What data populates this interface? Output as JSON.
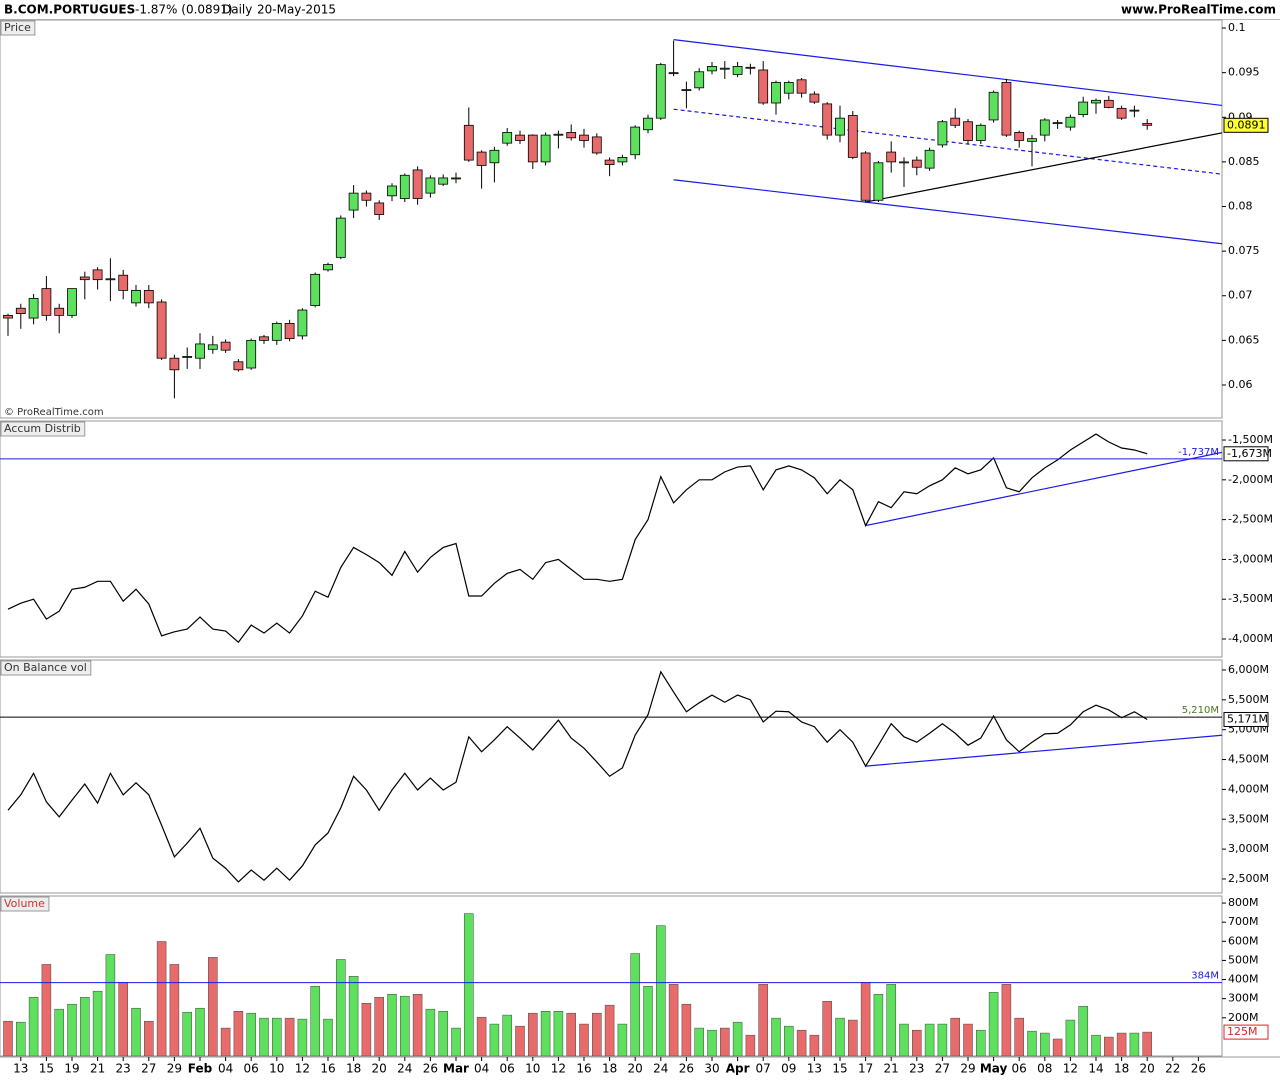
{
  "header": {
    "symbol": "B.COM.PORTUGUES",
    "change": "-1.87% (0.0891)",
    "period": "Daily",
    "date": "20-May-2015",
    "site": "www.ProRealTime.com"
  },
  "chart_data": [
    {
      "type": "candlestick",
      "title": "Price",
      "annotation": "© ProRealTime.com",
      "categories": [
        null,
        "13",
        null,
        "15",
        null,
        "19",
        null,
        "21",
        null,
        "23",
        null,
        "27",
        null,
        "29",
        null,
        "Feb",
        null,
        "04",
        null,
        "06",
        null,
        "10",
        null,
        "12",
        null,
        "16",
        null,
        "18",
        null,
        "20",
        null,
        "24",
        null,
        "26",
        null,
        "Mar",
        null,
        "04",
        null,
        "06",
        null,
        "10",
        null,
        "12",
        null,
        "16",
        null,
        "18",
        null,
        "20",
        null,
        "24",
        null,
        "26",
        null,
        "30",
        null,
        "Apr",
        null,
        "07",
        null,
        "09",
        null,
        "13",
        null,
        "15",
        null,
        "17",
        null,
        "21",
        null,
        "23",
        null,
        "27",
        null,
        "29",
        null,
        "May",
        null,
        "06",
        null,
        "08",
        null,
        "12",
        null,
        "14",
        null,
        "18",
        null,
        "20",
        null,
        "22",
        null,
        "26"
      ],
      "open": [
        0.0678,
        0.0686,
        0.0675,
        0.0708,
        0.0686,
        0.0678,
        0.0721,
        0.0729,
        0.0718,
        0.0723,
        0.0692,
        0.0706,
        0.0693,
        0.063,
        0.0631,
        0.063,
        0.064,
        0.0648,
        0.0626,
        0.0619,
        0.0654,
        0.065,
        0.0669,
        0.0655,
        0.0689,
        0.0729,
        0.0743,
        0.0796,
        0.0815,
        0.0804,
        0.0812,
        0.0809,
        0.0841,
        0.0815,
        0.0825,
        0.0832,
        0.0891,
        0.0861,
        0.0849,
        0.0871,
        0.088,
        0.088,
        0.085,
        0.088,
        0.0883,
        0.088,
        0.0878,
        0.0852,
        0.085,
        0.0858,
        0.0886,
        0.0899,
        0.095,
        0.0931,
        0.0933,
        0.0952,
        0.0955,
        0.0948,
        0.0956,
        0.0953,
        0.0916,
        0.0927,
        0.0942,
        0.0926,
        0.0915,
        0.088,
        0.0902,
        0.086,
        0.0807,
        0.0861,
        0.085,
        0.0852,
        0.0843,
        0.0869,
        0.0899,
        0.0895,
        0.0874,
        0.0897,
        0.0939,
        0.0883,
        0.0873,
        0.088,
        0.0894,
        0.0889,
        0.0903,
        0.0916,
        0.0919,
        0.091,
        0.0908,
        0.0893,
        null,
        null,
        null,
        null
      ],
      "high": [
        0.068,
        0.0691,
        0.0702,
        0.0722,
        0.0691,
        0.0708,
        0.0727,
        0.0732,
        0.0742,
        0.0729,
        0.0712,
        0.0712,
        0.0696,
        0.0634,
        0.0642,
        0.0658,
        0.0655,
        0.0651,
        0.0629,
        0.0652,
        0.0656,
        0.0671,
        0.0673,
        0.0686,
        0.0726,
        0.0737,
        0.079,
        0.0824,
        0.0818,
        0.0807,
        0.0826,
        0.0837,
        0.0845,
        0.0835,
        0.0836,
        0.0838,
        0.0911,
        0.0863,
        0.0867,
        0.0888,
        0.0885,
        0.0881,
        0.0883,
        0.0885,
        0.0892,
        0.0887,
        0.0882,
        0.0855,
        0.0858,
        0.0891,
        0.0903,
        0.0961,
        0.0986,
        0.094,
        0.0955,
        0.0962,
        0.0963,
        0.0962,
        0.096,
        0.0963,
        0.0941,
        0.0941,
        0.0944,
        0.0929,
        0.0917,
        0.0913,
        0.0907,
        0.0862,
        0.0851,
        0.0873,
        0.0855,
        0.0856,
        0.0866,
        0.0897,
        0.091,
        0.0898,
        0.0893,
        0.093,
        0.0943,
        0.0885,
        0.088,
        0.0899,
        0.0897,
        0.0903,
        0.0923,
        0.0921,
        0.0924,
        0.0913,
        0.0913,
        0.0898,
        null,
        null,
        null,
        null
      ],
      "low": [
        0.0655,
        0.0663,
        0.0668,
        0.0672,
        0.0658,
        0.0675,
        0.0696,
        0.0707,
        0.0694,
        0.0696,
        0.0688,
        0.0686,
        0.0628,
        0.0585,
        0.0618,
        0.0618,
        0.0635,
        0.0636,
        0.0615,
        0.0617,
        0.0646,
        0.0645,
        0.0649,
        0.0651,
        0.0687,
        0.0727,
        0.0741,
        0.0787,
        0.08,
        0.0785,
        0.0806,
        0.0805,
        0.0802,
        0.081,
        0.0823,
        0.0826,
        0.085,
        0.082,
        0.0827,
        0.0868,
        0.087,
        0.0842,
        0.0846,
        0.0865,
        0.0874,
        0.0866,
        0.0858,
        0.0834,
        0.0846,
        0.0853,
        0.0882,
        0.0897,
        0.0946,
        0.091,
        0.093,
        0.0948,
        0.0943,
        0.0945,
        0.0948,
        0.0914,
        0.0903,
        0.092,
        0.0922,
        0.0915,
        0.0875,
        0.0872,
        0.0853,
        0.0805,
        0.0805,
        0.0838,
        0.0822,
        0.0835,
        0.084,
        0.0866,
        0.0888,
        0.087,
        0.087,
        0.0894,
        0.0878,
        0.0866,
        0.0845,
        0.0873,
        0.0887,
        0.0885,
        0.09,
        0.0904,
        0.091,
        0.0897,
        0.09,
        0.0886,
        null,
        null,
        null,
        null
      ],
      "close": [
        0.0675,
        0.068,
        0.0697,
        0.0678,
        0.0678,
        0.0708,
        0.0718,
        0.0718,
        0.0719,
        0.0706,
        0.0706,
        0.0692,
        0.063,
        0.0617,
        0.0632,
        0.0646,
        0.0645,
        0.0639,
        0.0617,
        0.065,
        0.065,
        0.0669,
        0.0652,
        0.0684,
        0.0724,
        0.0735,
        0.0787,
        0.0815,
        0.0807,
        0.0791,
        0.0823,
        0.0835,
        0.0809,
        0.0832,
        0.0832,
        0.0832,
        0.0852,
        0.0846,
        0.0863,
        0.0883,
        0.0874,
        0.085,
        0.088,
        0.0881,
        0.0877,
        0.0874,
        0.086,
        0.0847,
        0.0855,
        0.0889,
        0.0899,
        0.0959,
        0.0949,
        0.093,
        0.0951,
        0.0957,
        0.0955,
        0.0957,
        0.0955,
        0.0916,
        0.0939,
        0.0939,
        0.0927,
        0.0917,
        0.088,
        0.0899,
        0.0855,
        0.0807,
        0.0849,
        0.085,
        0.085,
        0.0844,
        0.0863,
        0.0895,
        0.0891,
        0.0874,
        0.0891,
        0.0928,
        0.088,
        0.0874,
        0.0876,
        0.0897,
        0.0894,
        0.09,
        0.0917,
        0.0919,
        0.0911,
        0.0899,
        0.0908,
        0.0891,
        null,
        null,
        null,
        null
      ],
      "up_color": "#5de05d",
      "down_color": "#e86b6b",
      "ylim": [
        0.0563,
        0.1009
      ],
      "yticks": [
        0.1,
        0.095,
        0.09,
        0.085,
        0.08,
        0.075,
        0.07,
        0.065,
        0.06
      ],
      "last_label": "0.0891",
      "last_fill": "#ffff33",
      "last_color": "#000000",
      "lines": [
        {
          "x": [
            52,
            95
          ],
          "y": [
            0.0987,
            0.0913
          ],
          "color": "#1a1ae6",
          "dashed": false
        },
        {
          "x": [
            52,
            95
          ],
          "y": [
            0.0909,
            0.0836
          ],
          "color": "#1a1ae6",
          "dashed": true
        },
        {
          "x": [
            52,
            95
          ],
          "y": [
            0.083,
            0.0758
          ],
          "color": "#1a1ae6",
          "dashed": false
        },
        {
          "x": [
            67,
            95
          ],
          "y": [
            0.0805,
            0.0883
          ],
          "color": "#000000",
          "dashed": false
        }
      ]
    },
    {
      "type": "line",
      "title": "Accum Distrib",
      "color": "#000000",
      "values": [
        -3625,
        -3550,
        -3500,
        -3750,
        -3650,
        -3375,
        -3350,
        -3275,
        -3275,
        -3525,
        -3375,
        -3560,
        -3960,
        -3910,
        -3875,
        -3725,
        -3875,
        -3900,
        -4040,
        -3825,
        -3925,
        -3800,
        -3925,
        -3710,
        -3400,
        -3475,
        -3100,
        -2850,
        -2940,
        -3040,
        -3200,
        -2900,
        -3160,
        -2975,
        -2850,
        -2800,
        -3460,
        -3460,
        -3300,
        -3175,
        -3125,
        -3250,
        -3040,
        -3000,
        -3125,
        -3250,
        -3250,
        -3275,
        -3250,
        -2750,
        -2500,
        -1960,
        -2290,
        -2125,
        -2000,
        -2000,
        -1900,
        -1840,
        -1825,
        -2125,
        -1875,
        -1825,
        -1875,
        -1975,
        -2175,
        -2000,
        -2125,
        -2575,
        -2275,
        -2350,
        -2150,
        -2175,
        -2075,
        -2000,
        -1850,
        -1925,
        -1875,
        -1725,
        -2100,
        -2150,
        -1975,
        -1850,
        -1750,
        -1625,
        -1525,
        -1425,
        -1525,
        -1600,
        -1625,
        -1673,
        null,
        null,
        null,
        null
      ],
      "ylim": [
        -4226,
        -1261
      ],
      "yticks": [
        {
          "value": -1500,
          "label": "-1,500M"
        },
        {
          "value": -2000,
          "label": "-2,000M"
        },
        {
          "value": -2500,
          "label": "-2,500M"
        },
        {
          "value": -3000,
          "label": "-3,000M"
        },
        {
          "value": -3500,
          "label": "-3,500M"
        },
        {
          "value": -4000,
          "label": "-4,000M"
        }
      ],
      "last_label": "-1,673M",
      "last_fill": "#ffffff",
      "last_color": "#000000",
      "levels": [
        {
          "value": -1737,
          "label": "-1,737M",
          "color": "#1a1ae6"
        }
      ],
      "lines": [
        {
          "x": [
            67,
            95
          ],
          "y": [
            -2575,
            -1650
          ],
          "color": "#1a1ae6",
          "dashed": false
        }
      ]
    },
    {
      "type": "line",
      "title": "On Balance vol",
      "color": "#000000",
      "values": [
        3650,
        3910,
        4270,
        3790,
        3540,
        3820,
        4090,
        3770,
        4270,
        3910,
        4110,
        3910,
        3400,
        2870,
        3100,
        3350,
        2850,
        2680,
        2450,
        2650,
        2480,
        2680,
        2480,
        2720,
        3070,
        3270,
        3690,
        4220,
        3990,
        3650,
        3990,
        4270,
        3990,
        4190,
        3990,
        4120,
        4880,
        4630,
        4830,
        5050,
        4860,
        4660,
        4910,
        5160,
        4860,
        4690,
        4460,
        4220,
        4360,
        4910,
        5250,
        5970,
        5630,
        5300,
        5450,
        5580,
        5460,
        5580,
        5500,
        5130,
        5310,
        5300,
        5130,
        5050,
        4790,
        5000,
        4790,
        4390,
        4740,
        5100,
        4880,
        4790,
        4940,
        5100,
        4940,
        4740,
        4860,
        5230,
        4830,
        4630,
        4790,
        4930,
        4940,
        5080,
        5300,
        5410,
        5330,
        5200,
        5300,
        5171,
        null,
        null,
        null,
        null
      ],
      "ylim": [
        2265,
        6167
      ],
      "yticks": [
        {
          "value": 6000,
          "label": "6,000M"
        },
        {
          "value": 5500,
          "label": "5,500M"
        },
        {
          "value": 5000,
          "label": "5,000M"
        },
        {
          "value": 4500,
          "label": "4,500M"
        },
        {
          "value": 4000,
          "label": "4,000M"
        },
        {
          "value": 3500,
          "label": "3,500M"
        },
        {
          "value": 3000,
          "label": "3,000M"
        },
        {
          "value": 2500,
          "label": "2,500M"
        }
      ],
      "last_label": "5,171M",
      "last_fill": "#ffffff",
      "last_color": "#000000",
      "levels": [
        {
          "value": 5210,
          "label": "5,210M",
          "color": "#000000",
          "label_color": "#4b7a1e"
        }
      ],
      "lines": [
        {
          "x": [
            67,
            95
          ],
          "y": [
            4390,
            4910
          ],
          "color": "#1a1ae6",
          "dashed": false
        }
      ]
    },
    {
      "type": "bar",
      "title": "Volume",
      "values": [
        182,
        177,
        307,
        479,
        245,
        271,
        307,
        339,
        531,
        385,
        250,
        182,
        599,
        479,
        229,
        250,
        516,
        146,
        234,
        224,
        198,
        198,
        198,
        193,
        365,
        193,
        505,
        417,
        276,
        307,
        323,
        313,
        323,
        245,
        234,
        146,
        745,
        203,
        167,
        214,
        156,
        224,
        234,
        234,
        224,
        167,
        224,
        266,
        167,
        536,
        365,
        682,
        375,
        271,
        146,
        135,
        146,
        177,
        109,
        375,
        198,
        156,
        135,
        109,
        286,
        198,
        188,
        385,
        323,
        375,
        167,
        135,
        167,
        167,
        198,
        167,
        135,
        333,
        375,
        198,
        130,
        120,
        89,
        188,
        260,
        109,
        99,
        120,
        120,
        125,
        null,
        null,
        null,
        null
      ],
      "up_color": "#5de05d",
      "down_color": "#e86b6b",
      "ylim": [
        0,
        837
      ],
      "yticks": [
        {
          "value": 800,
          "label": "800M"
        },
        {
          "value": 700,
          "label": "700M"
        },
        {
          "value": 600,
          "label": "600M"
        },
        {
          "value": 500,
          "label": "500M"
        },
        {
          "value": 400,
          "label": "400M"
        },
        {
          "value": 300,
          "label": "300M"
        },
        {
          "value": 200,
          "label": "200M"
        }
      ],
      "last_label": "125M",
      "last_fill": "#ffffff",
      "last_color": "#e02020",
      "levels": [
        {
          "value": 384,
          "label": "384M",
          "color": "#1a1ae6"
        }
      ]
    }
  ]
}
